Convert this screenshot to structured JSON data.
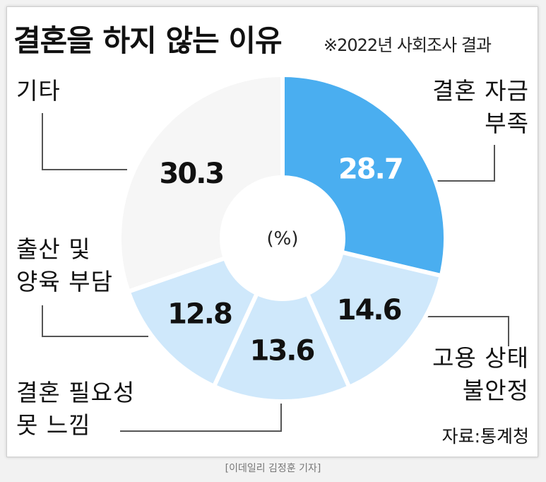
{
  "title": "결혼을 하지 않는 이유",
  "subtitle": "※2022년 사회조사 결과",
  "source": "자료:통계청",
  "credit": "[이데일리 김정훈 기자]",
  "colors": {
    "accent": "#4aaef0",
    "light": "#cfe8fb",
    "other": "#f6f6f6",
    "leader": "#555555"
  },
  "chart_data": {
    "type": "pie",
    "style": "donut",
    "center_label": "(%)",
    "categories": [
      "결혼 자금 부족",
      "고용 상태 불안정",
      "결혼 필요성 못 느낌",
      "출산 및 양육 부담",
      "기타"
    ],
    "values": [
      28.7,
      14.6,
      13.6,
      12.8,
      30.3
    ],
    "value_labels": [
      "28.7",
      "14.6",
      "13.6",
      "12.8",
      "30.3"
    ],
    "label_lines": [
      [
        "결혼 자금",
        "부족"
      ],
      [
        "고용 상태",
        "불안정"
      ],
      [
        "결혼 필요성",
        "못 느낌"
      ],
      [
        "출산 및",
        "양육 부담"
      ],
      [
        "기타"
      ]
    ]
  }
}
